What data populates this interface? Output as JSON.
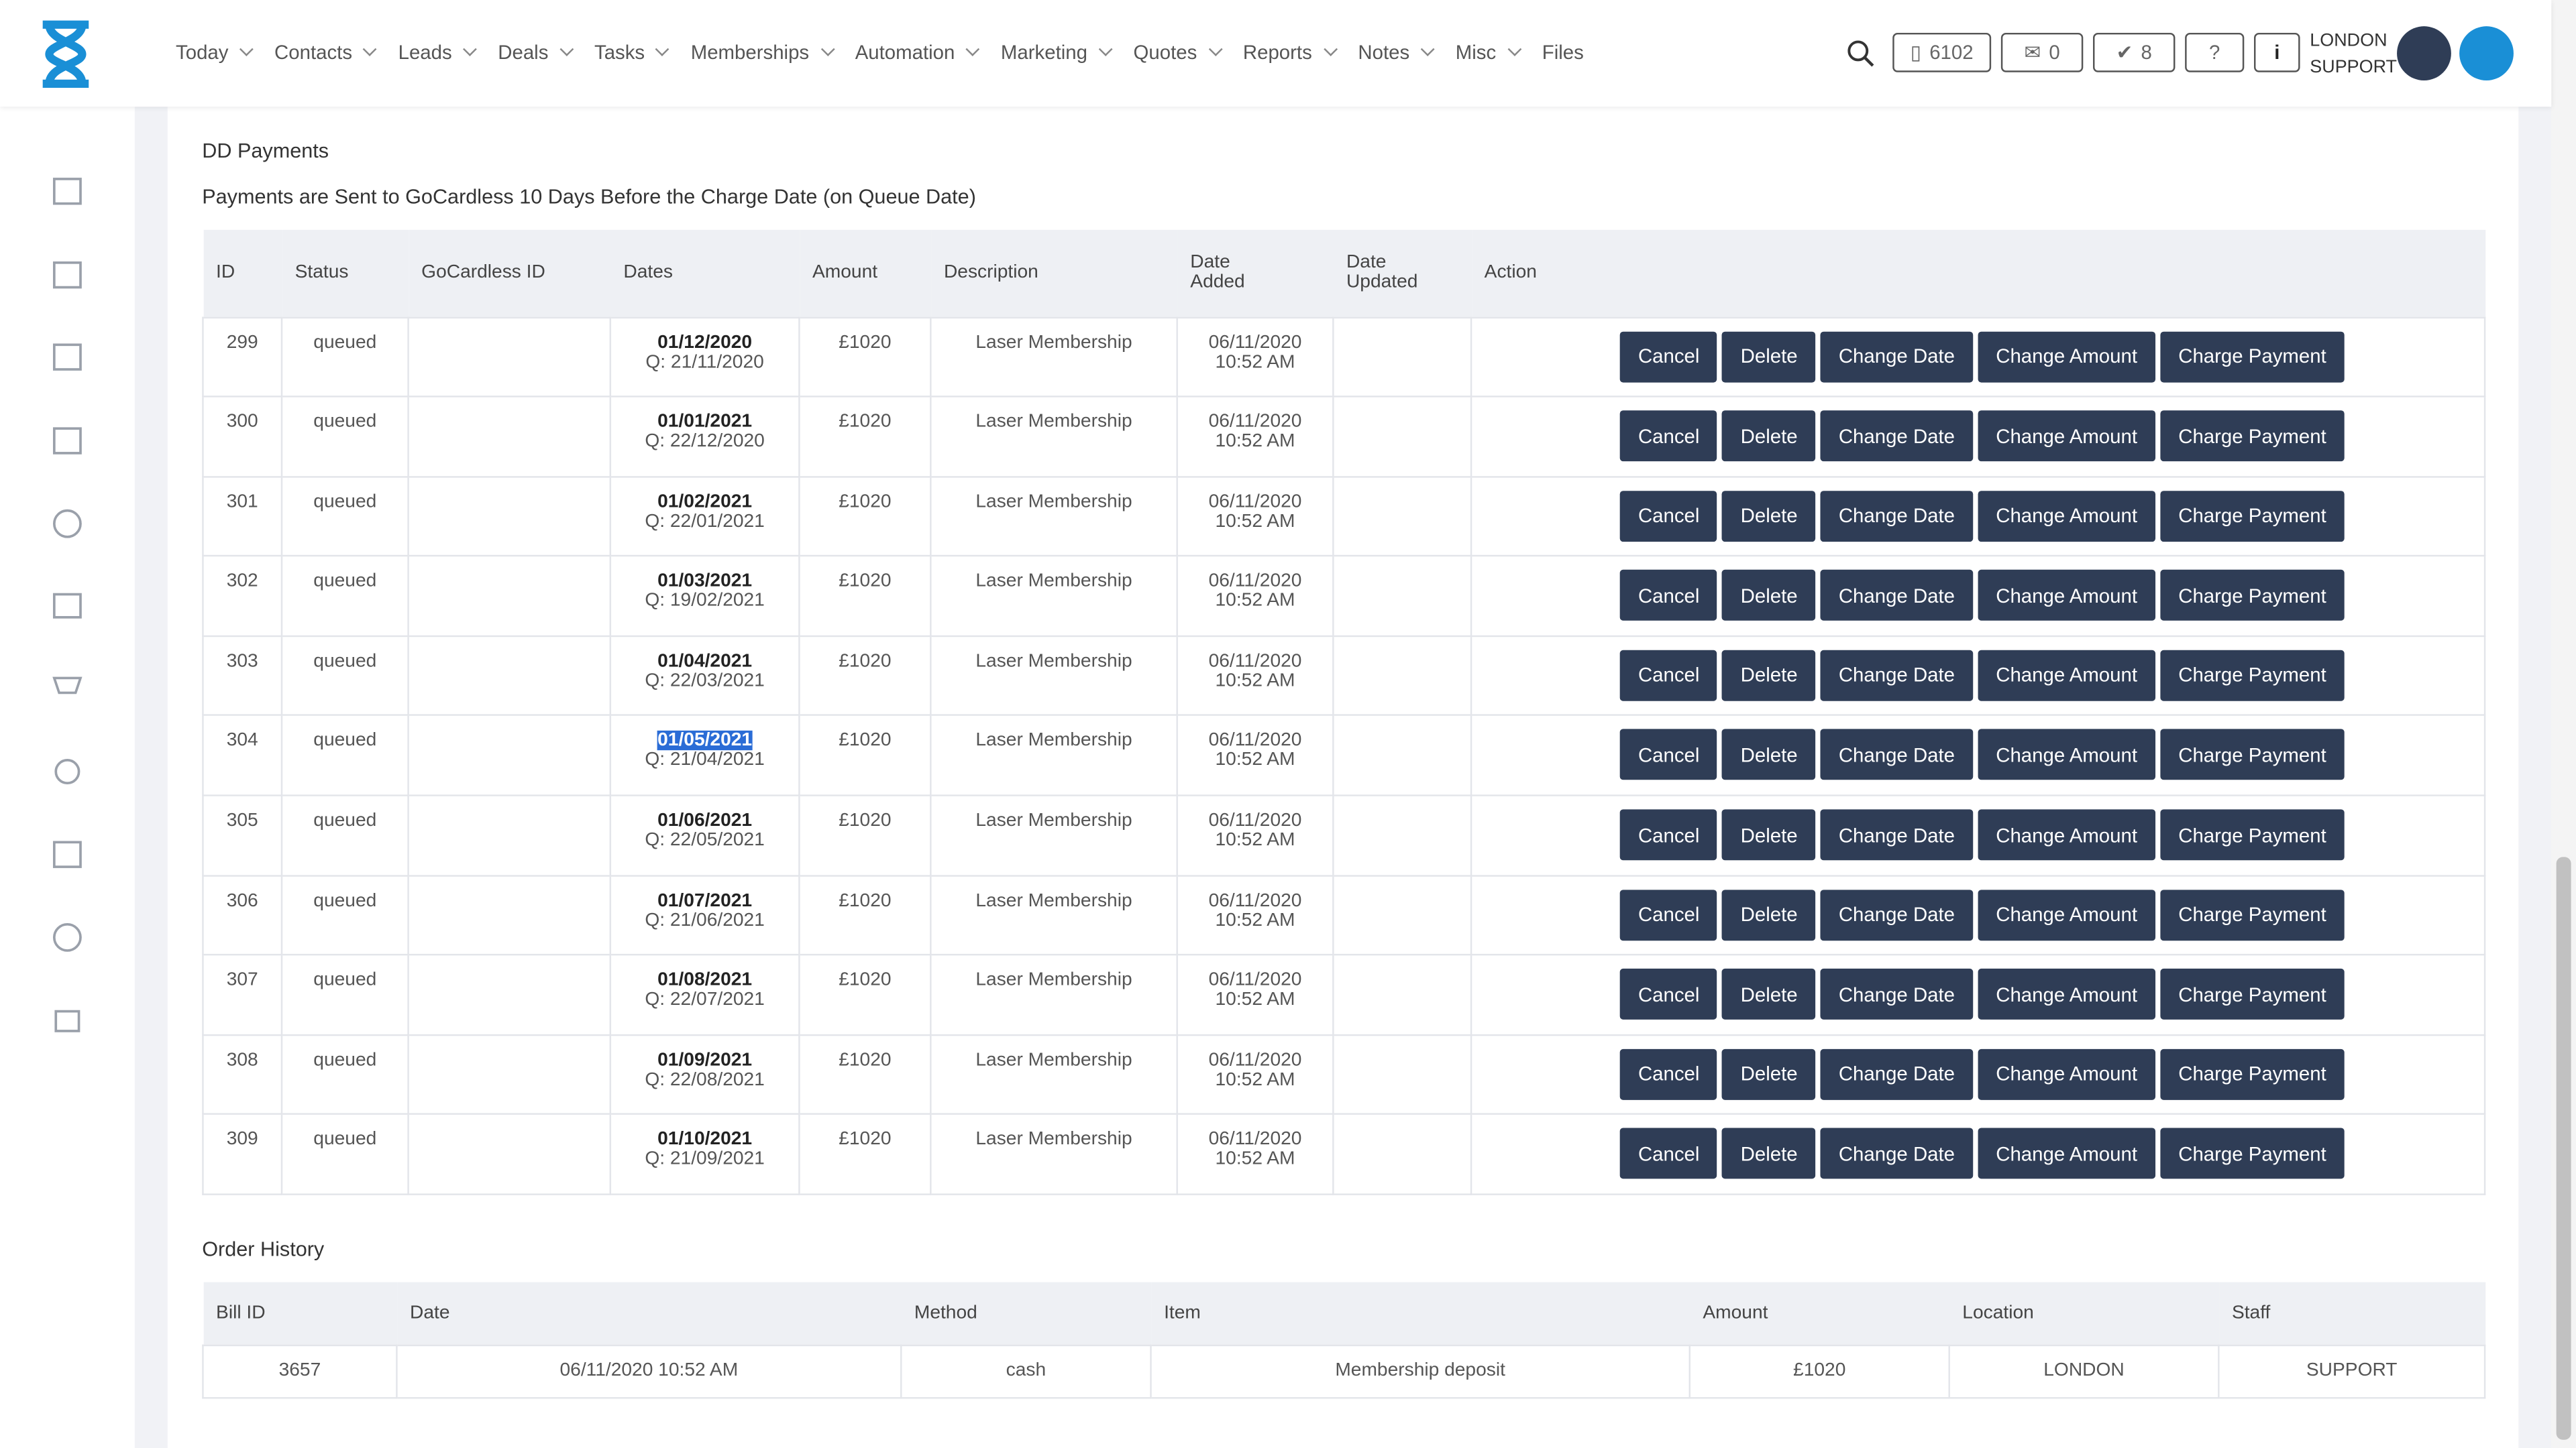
{
  "nav": [
    "Today",
    "Contacts",
    "Leads",
    "Deals",
    "Tasks",
    "Memberships",
    "Automation",
    "Marketing",
    "Quotes",
    "Reports",
    "Notes",
    "Misc",
    "Files"
  ],
  "header": {
    "phone": "6102",
    "mail": "0",
    "tasks": "8",
    "location": "LONDON",
    "user": "SUPPORT"
  },
  "dd": {
    "title": "DD Payments",
    "subtitle": "Payments are Sent to GoCardless 10 Days Before the Charge Date (on Queue Date)",
    "columns": [
      "ID",
      "Status",
      "GoCardless ID",
      "Dates",
      "Amount",
      "Description",
      "Date Added",
      "Date Updated",
      "Action"
    ],
    "actions": [
      "Cancel",
      "Delete",
      "Change Date",
      "Change Amount",
      "Charge Payment"
    ],
    "rows": [
      {
        "id": "299",
        "status": "queued",
        "date": "01/12/2020",
        "queue": "Q: 21/11/2020",
        "amount": "£1020",
        "description": "Laser Membership",
        "added": "06/11/2020",
        "time": "10:52 AM"
      },
      {
        "id": "300",
        "status": "queued",
        "date": "01/01/2021",
        "queue": "Q: 22/12/2020",
        "amount": "£1020",
        "description": "Laser Membership",
        "added": "06/11/2020",
        "time": "10:52 AM"
      },
      {
        "id": "301",
        "status": "queued",
        "date": "01/02/2021",
        "queue": "Q: 22/01/2021",
        "amount": "£1020",
        "description": "Laser Membership",
        "added": "06/11/2020",
        "time": "10:52 AM"
      },
      {
        "id": "302",
        "status": "queued",
        "date": "01/03/2021",
        "queue": "Q: 19/02/2021",
        "amount": "£1020",
        "description": "Laser Membership",
        "added": "06/11/2020",
        "time": "10:52 AM"
      },
      {
        "id": "303",
        "status": "queued",
        "date": "01/04/2021",
        "queue": "Q: 22/03/2021",
        "amount": "£1020",
        "description": "Laser Membership",
        "added": "06/11/2020",
        "time": "10:52 AM"
      },
      {
        "id": "304",
        "status": "queued",
        "date": "01/05/2021",
        "queue": "Q: 21/04/2021",
        "amount": "£1020",
        "description": "Laser Membership",
        "added": "06/11/2020",
        "time": "10:52 AM"
      },
      {
        "id": "305",
        "status": "queued",
        "date": "01/06/2021",
        "queue": "Q: 22/05/2021",
        "amount": "£1020",
        "description": "Laser Membership",
        "added": "06/11/2020",
        "time": "10:52 AM"
      },
      {
        "id": "306",
        "status": "queued",
        "date": "01/07/2021",
        "queue": "Q: 21/06/2021",
        "amount": "£1020",
        "description": "Laser Membership",
        "added": "06/11/2020",
        "time": "10:52 AM"
      },
      {
        "id": "307",
        "status": "queued",
        "date": "01/08/2021",
        "queue": "Q: 22/07/2021",
        "amount": "£1020",
        "description": "Laser Membership",
        "added": "06/11/2020",
        "time": "10:52 AM"
      },
      {
        "id": "308",
        "status": "queued",
        "date": "01/09/2021",
        "queue": "Q: 22/08/2021",
        "amount": "£1020",
        "description": "Laser Membership",
        "added": "06/11/2020",
        "time": "10:52 AM"
      },
      {
        "id": "309",
        "status": "queued",
        "date": "01/10/2021",
        "queue": "Q: 21/09/2021",
        "amount": "£1020",
        "description": "Laser Membership",
        "added": "06/11/2020",
        "time": "10:52 AM"
      }
    ]
  },
  "orders": {
    "title": "Order History",
    "columns": [
      "Bill ID",
      "Date",
      "Method",
      "Item",
      "Amount",
      "Location",
      "Staff"
    ],
    "rows": [
      [
        "3657",
        "06/11/2020 10:52 AM",
        "cash",
        "Membership deposit",
        "£1020",
        "LONDON",
        "SUPPORT"
      ]
    ]
  }
}
